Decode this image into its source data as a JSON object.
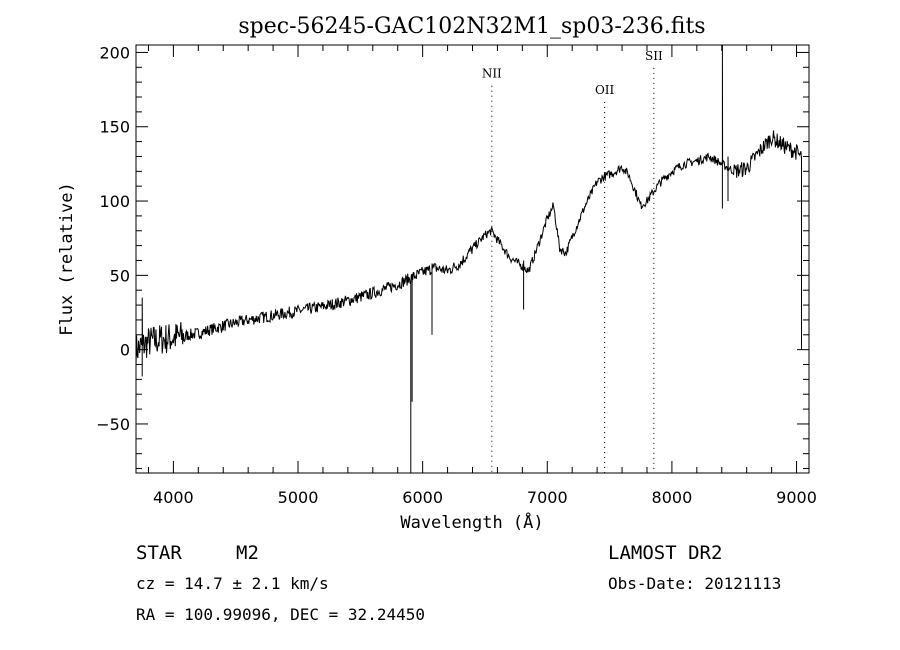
{
  "chart_data": {
    "type": "line",
    "title": "spec-56245-GAC102N32M1_sp03-236.fits",
    "xlabel": "Wavelength (Å)",
    "ylabel": "Flux (relative)",
    "xlim": [
      3700,
      9100
    ],
    "ylim": [
      -83,
      205
    ],
    "xticks": [
      4000,
      5000,
      6000,
      7000,
      8000,
      9000
    ],
    "xtick_labels": [
      "4000",
      "5000",
      "6000",
      "7000",
      "8000",
      "9000"
    ],
    "yticks": [
      -50,
      0,
      50,
      100,
      150,
      200
    ],
    "ytick_labels": [
      "−50",
      "0",
      "50",
      "100",
      "150",
      "200"
    ],
    "grid": false,
    "line_markers": [
      {
        "label": "NII",
        "x": 6555,
        "label_y": 183
      },
      {
        "label": "OII",
        "x": 7460,
        "label_y": 172
      },
      {
        "label": "SII",
        "x": 7855,
        "label_y": 195
      }
    ],
    "spectrum_anchors": {
      "x": [
        3700,
        3800,
        3900,
        4000,
        4200,
        4400,
        4600,
        4800,
        5000,
        5200,
        5400,
        5600,
        5800,
        5900,
        6000,
        6100,
        6200,
        6300,
        6400,
        6500,
        6550,
        6600,
        6700,
        6800,
        6850,
        6900,
        7000,
        7050,
        7100,
        7150,
        7200,
        7300,
        7400,
        7450,
        7550,
        7600,
        7650,
        7700,
        7750,
        7800,
        7900,
        8000,
        8100,
        8200,
        8300,
        8400,
        8500,
        8600,
        8700,
        8800,
        8900,
        9000,
        9030
      ],
      "y": [
        0,
        5,
        7,
        8,
        11,
        16,
        20,
        23,
        26,
        29,
        33,
        38,
        44,
        48,
        52,
        55,
        53,
        58,
        68,
        77,
        80,
        74,
        62,
        56,
        53,
        64,
        88,
        97,
        68,
        65,
        76,
        96,
        113,
        116,
        120,
        123,
        118,
        108,
        97,
        100,
        112,
        120,
        125,
        127,
        130,
        125,
        120,
        122,
        133,
        143,
        137,
        133,
        130
      ]
    },
    "spectrum_features": [
      {
        "x": 3750,
        "y": [
          -18,
          35
        ],
        "type": "noise-spikes"
      },
      {
        "x": 5905,
        "y": [
          -83,
          45
        ],
        "type": "absorption"
      },
      {
        "x": 5915,
        "y": [
          -35,
          45
        ],
        "type": "absorption"
      },
      {
        "x": 6075,
        "y": [
          10,
          58
        ],
        "type": "absorption"
      },
      {
        "x": 6810,
        "y": [
          27,
          60
        ],
        "type": "absorption"
      },
      {
        "x": 8405,
        "y": [
          95,
          205
        ],
        "type": "emission"
      },
      {
        "x": 8450,
        "y": [
          100,
          130
        ],
        "type": "absorption"
      },
      {
        "x": 9040,
        "y": [
          0,
          130
        ],
        "type": "edge-drop"
      }
    ]
  },
  "info": {
    "object_type": "STAR",
    "subclass": "M2",
    "survey": "LAMOST DR2",
    "cz": "cz = 14.7 ± 2.1 km/s",
    "obs_date": "Obs-Date: 20121113",
    "coords": "RA = 100.99096, DEC =  32.24450"
  }
}
